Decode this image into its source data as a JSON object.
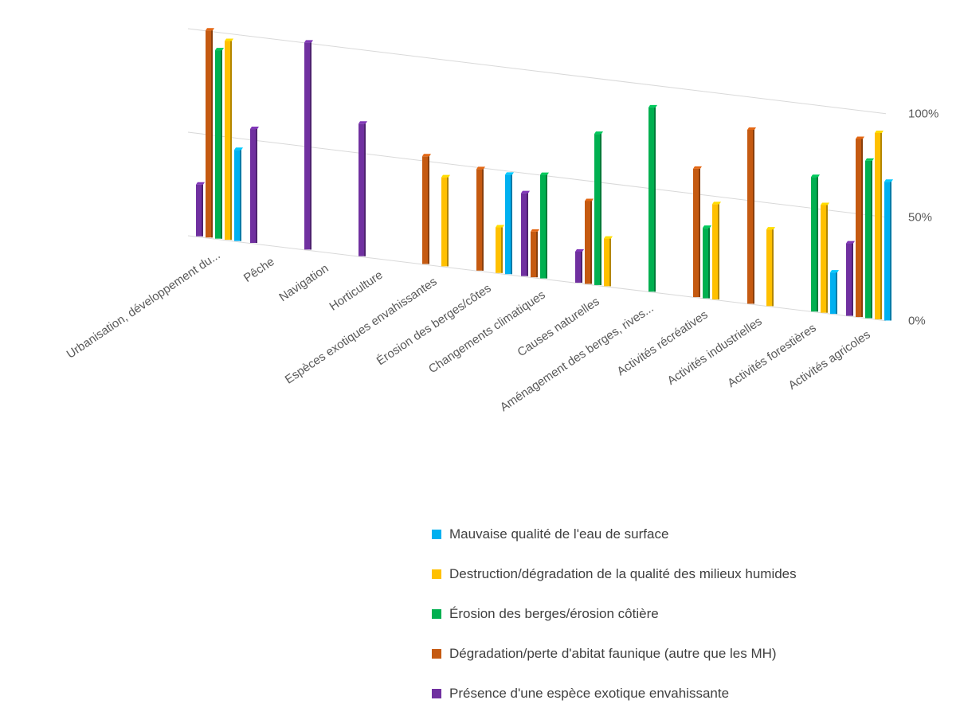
{
  "chart_data": {
    "type": "bar",
    "style": "3d-clustered-column",
    "categories": [
      "Urbanisation, développement du...",
      "Pêche",
      "Navigation",
      "Horticulture",
      "Espèces exotiques envahissantes",
      "Érosion des berges/côtes",
      "Changements climatiques",
      "Causes naturelles",
      "Aménagement des berges, rives...",
      "Activités récréatives",
      "Activités industrielles",
      "Activités forestières",
      "Activités agricoles"
    ],
    "series": [
      {
        "name": "Présence d'une espèce exotique envahissante",
        "color": "#7030A0",
        "values": [
          25,
          55,
          100,
          64,
          0,
          0,
          40,
          15,
          0,
          0,
          0,
          0,
          35
        ]
      },
      {
        "name": "Dégradation/perte d'abitat faunique (autre que les MH)",
        "color": "#C55A11",
        "values": [
          100,
          0,
          0,
          0,
          52,
          49,
          22,
          40,
          0,
          62,
          84,
          0,
          86
        ]
      },
      {
        "name": "Érosion des berges/érosion côtière",
        "color": "#00B050",
        "values": [
          91,
          0,
          0,
          0,
          0,
          0,
          50,
          73,
          89,
          34,
          0,
          65,
          76
        ]
      },
      {
        "name": "Destruction/dégradation de la qualité des milieux humides",
        "color": "#FFC000",
        "values": [
          96,
          0,
          0,
          0,
          43,
          22,
          0,
          23,
          0,
          46,
          37,
          52,
          90
        ]
      },
      {
        "name": "Mauvaise qualité de l'eau de surface",
        "color": "#00B0F0",
        "values": [
          44,
          0,
          0,
          0,
          0,
          48,
          0,
          0,
          0,
          0,
          0,
          20,
          67
        ]
      }
    ],
    "yticks": [
      "0%",
      "50%",
      "100%"
    ],
    "ylim": [
      0,
      100
    ],
    "legend_position": "bottom-right"
  },
  "legend": [
    {
      "label": "Mauvaise qualité de l'eau de surface",
      "color": "#00B0F0"
    },
    {
      "label": "Destruction/dégradation de la qualité des milieux humides",
      "color": "#FFC000"
    },
    {
      "label": "Érosion des berges/érosion côtière",
      "color": "#00B050"
    },
    {
      "label": "Dégradation/perte d'abitat faunique (autre que les MH)",
      "color": "#C55A11"
    },
    {
      "label": "Présence d'une espèce exotique envahissante",
      "color": "#7030A0"
    }
  ]
}
